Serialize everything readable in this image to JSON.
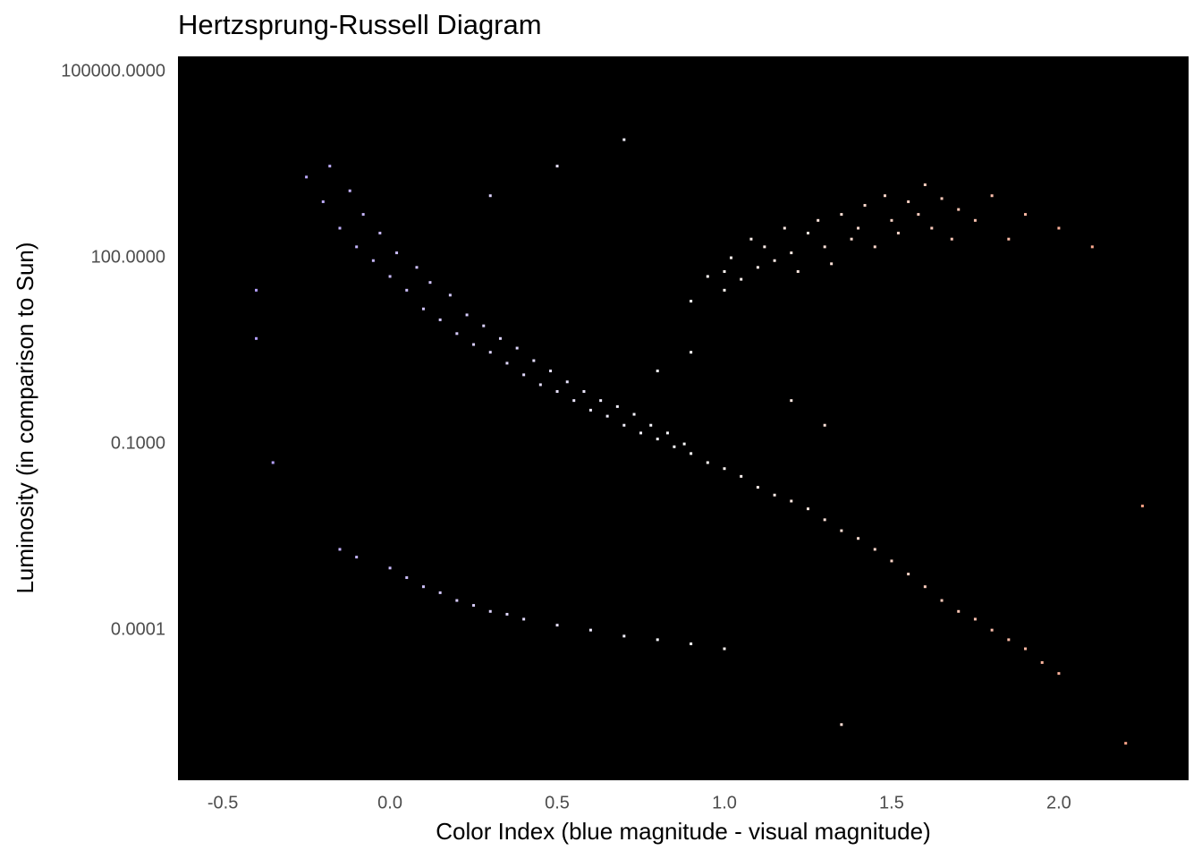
{
  "chart_data": {
    "type": "scatter",
    "title": "Hertzsprung-Russell Diagram",
    "x_label": "Color Index (blue magnitude - visual magnitude)",
    "y_label": "Luminosity (in comparison to Sun)",
    "background": "#000000",
    "color_gradient": [
      "#a58cff",
      "#ffffff",
      "#ff9878"
    ],
    "ylog": true,
    "grid": false,
    "xlim": [
      -0.634,
      2.388
    ],
    "ylim": [
      3.8e-07,
      176000
    ],
    "xticks": [
      -0.5,
      {
        "value": 0,
        "label": "0.0"
      },
      0.5,
      {
        "value": 1,
        "label": "1.0"
      },
      1.5,
      {
        "value": 2,
        "label": "2.0"
      }
    ],
    "yticks": [
      {
        "value": 100000,
        "label": "100000.0000"
      },
      {
        "value": 100,
        "label": "100.0000"
      },
      {
        "value": 0.1,
        "label": "0.1000"
      },
      {
        "value": 0.0001,
        "label": "0.0001"
      }
    ],
    "x": [
      -0.25,
      -0.2,
      -0.18,
      -0.15,
      -0.12,
      -0.1,
      -0.08,
      -0.05,
      -0.03,
      0,
      0.02,
      0.05,
      0.08,
      0.1,
      0.12,
      0.15,
      0.18,
      0.2,
      0.23,
      0.25,
      0.28,
      0.3,
      0.33,
      0.35,
      0.38,
      0.4,
      0.43,
      0.45,
      0.48,
      0.5,
      0.53,
      0.55,
      0.58,
      0.6,
      0.63,
      0.65,
      0.68,
      0.7,
      0.73,
      0.75,
      0.78,
      0.8,
      0.83,
      0.85,
      0.88,
      0.9,
      0.95,
      1.0,
      1.05,
      1.1,
      1.15,
      1.2,
      1.25,
      1.3,
      1.35,
      1.4,
      1.45,
      1.5,
      1.55,
      1.6,
      1.65,
      1.7,
      1.75,
      1.8,
      1.85,
      1.9,
      1.95,
      2.0,
      0.9,
      0.95,
      1.0,
      1.0,
      1.02,
      1.05,
      1.08,
      1.1,
      1.12,
      1.15,
      1.18,
      1.2,
      1.22,
      1.25,
      1.28,
      1.3,
      1.32,
      1.35,
      1.38,
      1.4,
      1.42,
      1.45,
      1.48,
      1.5,
      1.52,
      1.55,
      1.58,
      1.6,
      1.62,
      1.65,
      1.68,
      1.7,
      1.75,
      1.8,
      1.85,
      1.9,
      2.0,
      2.1,
      0.5,
      0.7,
      0.3,
      0.8,
      0.9,
      1.2,
      1.3,
      -0.15,
      -0.1,
      0,
      0.05,
      0.1,
      0.15,
      0.2,
      0.25,
      0.3,
      0.35,
      0.4,
      0.5,
      0.6,
      0.7,
      0.8,
      0.9,
      1.0,
      -0.4,
      -0.4,
      -0.35,
      1.35,
      2.2,
      2.25
    ],
    "values": [
      2000,
      800,
      3000,
      300,
      1200,
      150,
      500,
      90,
      250,
      50,
      120,
      30,
      70,
      15,
      40,
      10,
      25,
      6,
      12,
      4,
      8,
      3,
      5,
      2,
      3.5,
      1.3,
      2.2,
      0.9,
      1.5,
      0.7,
      1,
      0.5,
      0.7,
      0.35,
      0.5,
      0.28,
      0.4,
      0.2,
      0.3,
      0.15,
      0.2,
      0.12,
      0.15,
      0.09,
      0.1,
      0.07,
      0.05,
      0.04,
      0.03,
      0.02,
      0.015,
      0.012,
      0.009,
      0.006,
      0.004,
      0.003,
      0.002,
      0.0013,
      0.0008,
      0.0005,
      0.0003,
      0.0002,
      0.00015,
      0.0001,
      7e-05,
      5e-05,
      3e-05,
      2e-05,
      20,
      50,
      60,
      30,
      100,
      45,
      200,
      70,
      150,
      90,
      300,
      120,
      60,
      250,
      400,
      150,
      80,
      500,
      200,
      300,
      700,
      150,
      1000,
      400,
      250,
      800,
      500,
      1500,
      300,
      900,
      200,
      600,
      400,
      1000,
      200,
      500,
      300,
      150,
      3000,
      8000,
      1000,
      1.5,
      3,
      0.5,
      0.2,
      0.002,
      0.0015,
      0.001,
      0.0007,
      0.0005,
      0.0004,
      0.0003,
      0.00025,
      0.0002,
      0.00018,
      0.00015,
      0.00012,
      0.0001,
      8e-05,
      7e-05,
      6e-05,
      5e-05,
      30,
      5,
      0.05,
      3e-06,
      1.5e-06,
      0.01
    ]
  }
}
